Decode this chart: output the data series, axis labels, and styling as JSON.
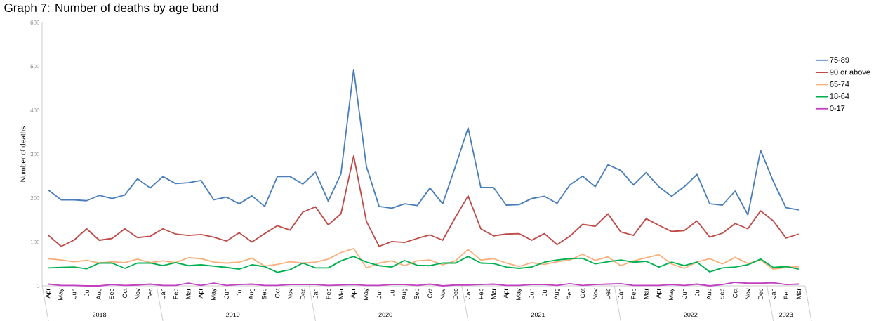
{
  "chart_data": {
    "type": "line",
    "title": "Graph 7: Number of deaths by age band",
    "ylabel": "Number of deaths",
    "categories": [
      "Apr",
      "May",
      "Jun",
      "Jul",
      "Aug",
      "Sep",
      "Oct",
      "Nov",
      "Dec",
      "Jan",
      "Feb",
      "Mar",
      "Apr",
      "May",
      "Jun",
      "Jul",
      "Aug",
      "Sep",
      "Oct",
      "Nov",
      "Dec",
      "Jan",
      "Feb",
      "Mar",
      "Apr",
      "May",
      "Jun",
      "Jul",
      "Aug",
      "Sep",
      "Oct",
      "Nov",
      "Dec",
      "Jan",
      "Feb",
      "Mar",
      "Apr",
      "May",
      "Jun",
      "Jul",
      "Aug",
      "Sep",
      "Oct",
      "Nov",
      "Dec",
      "Jan",
      "Feb",
      "Mar",
      "Apr",
      "May",
      "Jun",
      "Jul",
      "Aug",
      "Sep",
      "Oct",
      "Nov",
      "Dec",
      "Jan",
      "Feb",
      "Mar"
    ],
    "series": [
      {
        "name": "75-89",
        "color": "#4a7ebb",
        "values": [
          218,
          196,
          196,
          194,
          206,
          199,
          207,
          244,
          223,
          249,
          233,
          235,
          240,
          196,
          202,
          187,
          205,
          181,
          249,
          249,
          232,
          259,
          193,
          255,
          493,
          272,
          181,
          177,
          187,
          183,
          223,
          187,
          272,
          360,
          224,
          224,
          184,
          185,
          199,
          204,
          188,
          230,
          250,
          226,
          276,
          263,
          230,
          258,
          226,
          204,
          226,
          254,
          187,
          184,
          216,
          162,
          309,
          238,
          178,
          173
        ]
      },
      {
        "name": "90 or above",
        "color": "#be4b48",
        "values": [
          115,
          90,
          104,
          130,
          104,
          108,
          130,
          110,
          113,
          130,
          118,
          115,
          117,
          111,
          102,
          121,
          100,
          119,
          137,
          127,
          168,
          180,
          139,
          164,
          296,
          147,
          90,
          101,
          99,
          108,
          116,
          104,
          156,
          205,
          130,
          114,
          118,
          119,
          104,
          119,
          94,
          113,
          140,
          136,
          164,
          123,
          115,
          153,
          138,
          124,
          126,
          148,
          111,
          120,
          142,
          130,
          171,
          148,
          109,
          118
        ]
      },
      {
        "name": "65-74",
        "color": "#f7b07c",
        "values": [
          62,
          59,
          55,
          58,
          52,
          55,
          53,
          61,
          53,
          57,
          53,
          64,
          62,
          54,
          52,
          54,
          63,
          45,
          49,
          55,
          52,
          54,
          61,
          76,
          85,
          41,
          52,
          57,
          46,
          57,
          59,
          48,
          57,
          83,
          59,
          62,
          52,
          44,
          53,
          49,
          55,
          59,
          72,
          58,
          66,
          46,
          57,
          64,
          71,
          50,
          40,
          54,
          62,
          50,
          65,
          51,
          59,
          38,
          42,
          44
        ]
      },
      {
        "name": "18-64",
        "color": "#00b050",
        "values": [
          41,
          42,
          43,
          39,
          52,
          52,
          40,
          52,
          52,
          46,
          53,
          46,
          48,
          45,
          42,
          38,
          48,
          44,
          31,
          37,
          52,
          41,
          41,
          57,
          67,
          54,
          46,
          43,
          58,
          47,
          46,
          52,
          52,
          67,
          52,
          51,
          43,
          40,
          43,
          54,
          59,
          62,
          63,
          50,
          55,
          59,
          54,
          56,
          43,
          54,
          46,
          54,
          32,
          41,
          43,
          48,
          61,
          42,
          44,
          38
        ]
      },
      {
        "name": "0-17",
        "color": "#c040c0",
        "values": [
          4,
          1,
          1,
          0,
          0,
          3,
          1,
          2,
          4,
          1,
          1,
          6,
          1,
          6,
          1,
          3,
          4,
          1,
          1,
          3,
          3,
          3,
          1,
          2,
          3,
          1,
          1,
          3,
          3,
          1,
          4,
          0,
          2,
          2,
          3,
          4,
          1,
          1,
          3,
          3,
          1,
          5,
          1,
          3,
          4,
          5,
          1,
          1,
          1,
          3,
          1,
          4,
          0,
          3,
          8,
          6,
          6,
          7,
          3,
          4
        ]
      }
    ],
    "ylim": [
      0,
      600
    ],
    "yticks": [
      0,
      100,
      200,
      300,
      400,
      500,
      600
    ],
    "legend": "right",
    "annotations": [
      "2018",
      "2019",
      "2020",
      "2021",
      "2022",
      "2023"
    ]
  }
}
